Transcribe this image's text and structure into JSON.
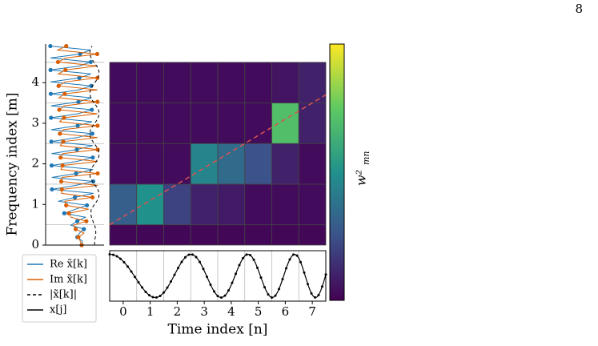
{
  "page_number": "8",
  "chart_data": {
    "type": "heatmap",
    "x_label": "Time index [n]",
    "y_label": "Frequency index [m]",
    "colorbar_label": "w²",
    "colorbar_label_sub": "mn",
    "x": [
      0,
      1,
      2,
      3,
      4,
      5,
      6,
      7
    ],
    "y": [
      0,
      1,
      2,
      3,
      4
    ],
    "xlim": [
      -0.5,
      7.5
    ],
    "ylim": [
      0,
      4.95
    ],
    "xticks": [
      0,
      1,
      2,
      3,
      4,
      5,
      6,
      7
    ],
    "yticks": [
      0,
      1,
      2,
      3,
      4
    ],
    "values": [
      [
        0.02,
        0.02,
        0.02,
        0.02,
        0.02,
        0.02,
        0.02,
        0.02
      ],
      [
        0.3,
        0.5,
        0.2,
        0.1,
        0.08,
        0.03,
        0.03,
        0.03
      ],
      [
        0.03,
        0.03,
        0.03,
        0.45,
        0.35,
        0.25,
        0.1,
        0.03
      ],
      [
        0.03,
        0.03,
        0.03,
        0.03,
        0.03,
        0.03,
        0.7,
        0.1
      ],
      [
        0.03,
        0.03,
        0.03,
        0.03,
        0.03,
        0.03,
        0.06,
        0.1
      ]
    ],
    "clim": [
      0,
      1
    ],
    "colormap": [
      "#440154",
      "#3b528b",
      "#21918c",
      "#5ec962",
      "#fde725"
    ],
    "dashed_line": {
      "color": "#d9534f",
      "x": [
        -0.5,
        7.5
      ],
      "y": [
        0.5,
        3.7
      ]
    },
    "legend": [
      {
        "name": "Re x̃[k]",
        "color": "#1f77b4",
        "dash": false
      },
      {
        "name": "Im x̃[k]",
        "color": "#d95f02",
        "dash": false
      },
      {
        "name": "|x̃[k]|",
        "color": "#000000",
        "dash": true
      },
      {
        "name": "x[j]",
        "color": "#000000",
        "dash": false
      }
    ]
  }
}
